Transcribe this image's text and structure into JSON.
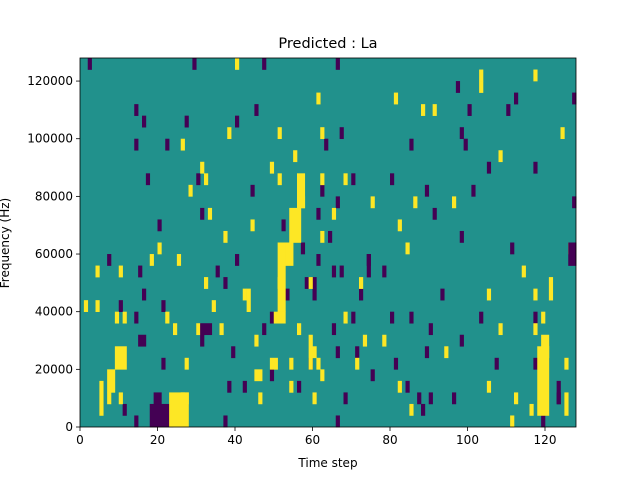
{
  "chart_data": {
    "type": "heatmap",
    "title": "Predicted : La",
    "xlabel": "Time step",
    "ylabel": "Frequency (Hz)",
    "xlim": [
      0,
      128
    ],
    "ylim": [
      0,
      128000
    ],
    "xticks": [
      0,
      20,
      40,
      60,
      80,
      100,
      120
    ],
    "yticks": [
      0,
      20000,
      40000,
      60000,
      80000,
      100000,
      120000
    ],
    "n_time_steps": 128,
    "n_freq_bins": 32,
    "bin_width_hz": 4000,
    "colormap": "viridis",
    "background_value": 0,
    "colors": {
      "low": "#440154",
      "mid": "#21918c",
      "high": "#fde725"
    },
    "cells_low": [
      [
        2,
        31
      ],
      [
        29,
        31
      ],
      [
        47,
        31
      ],
      [
        66,
        31
      ],
      [
        97,
        29
      ],
      [
        112,
        28
      ],
      [
        127,
        28
      ],
      [
        14,
        27
      ],
      [
        45,
        27
      ],
      [
        100,
        27
      ],
      [
        110,
        27
      ],
      [
        16,
        26
      ],
      [
        27,
        26
      ],
      [
        40,
        26
      ],
      [
        67,
        25
      ],
      [
        98,
        25
      ],
      [
        14,
        24
      ],
      [
        22,
        24
      ],
      [
        63,
        24
      ],
      [
        85,
        24
      ],
      [
        99,
        24
      ],
      [
        105,
        22
      ],
      [
        117,
        22
      ],
      [
        17,
        21
      ],
      [
        30,
        21
      ],
      [
        70,
        21
      ],
      [
        80,
        21
      ],
      [
        101,
        20
      ],
      [
        44,
        20
      ],
      [
        62,
        20
      ],
      [
        89,
        20
      ],
      [
        66,
        19
      ],
      [
        127,
        19
      ],
      [
        31,
        18
      ],
      [
        91,
        18
      ],
      [
        61,
        18
      ],
      [
        20,
        17
      ],
      [
        52,
        17
      ],
      [
        64,
        16
      ],
      [
        98,
        16
      ],
      [
        57,
        15
      ],
      [
        111,
        15
      ],
      [
        7,
        14
      ],
      [
        40,
        14
      ],
      [
        61,
        14
      ],
      [
        74,
        14
      ],
      [
        35,
        13
      ],
      [
        15,
        13
      ],
      [
        60,
        12
      ],
      [
        58,
        12
      ],
      [
        37,
        12
      ],
      [
        65,
        13
      ],
      [
        67,
        13
      ],
      [
        53,
        11
      ],
      [
        60,
        11
      ],
      [
        72,
        11
      ],
      [
        93,
        11
      ],
      [
        16,
        11
      ],
      [
        10,
        10
      ],
      [
        21,
        10
      ],
      [
        14,
        9
      ],
      [
        49,
        9
      ],
      [
        70,
        9
      ],
      [
        80,
        9
      ],
      [
        85,
        9
      ],
      [
        103,
        9
      ],
      [
        117,
        9
      ],
      [
        65,
        8
      ],
      [
        98,
        7
      ],
      [
        90,
        8
      ],
      [
        47,
        8
      ],
      [
        39,
        6
      ],
      [
        31,
        7
      ],
      [
        66,
        6
      ],
      [
        71,
        6
      ],
      [
        89,
        6
      ],
      [
        21,
        5
      ],
      [
        59,
        5
      ],
      [
        81,
        5
      ],
      [
        107,
        5
      ],
      [
        117,
        5
      ],
      [
        49,
        4
      ],
      [
        75,
        4
      ],
      [
        42,
        3
      ],
      [
        56,
        3
      ],
      [
        84,
        3
      ],
      [
        68,
        2
      ],
      [
        90,
        2
      ],
      [
        96,
        2
      ],
      [
        123,
        2
      ],
      [
        11,
        1
      ],
      [
        88,
        1
      ],
      [
        14,
        0
      ],
      [
        37,
        0
      ],
      [
        66,
        0
      ],
      [
        119,
        0
      ]
    ],
    "cells_high": [
      [
        40,
        31
      ],
      [
        103,
        30
      ],
      [
        117,
        30
      ],
      [
        103,
        29
      ],
      [
        81,
        28
      ],
      [
        61,
        28
      ],
      [
        88,
        27
      ],
      [
        91,
        27
      ],
      [
        38,
        25
      ],
      [
        51,
        25
      ],
      [
        62,
        25
      ],
      [
        124,
        25
      ],
      [
        26,
        24
      ],
      [
        55,
        23
      ],
      [
        108,
        23
      ],
      [
        31,
        22
      ],
      [
        49,
        22
      ],
      [
        32,
        21
      ],
      [
        51,
        21
      ],
      [
        62,
        21
      ],
      [
        68,
        21
      ],
      [
        28,
        20
      ],
      [
        57,
        19
      ],
      [
        75,
        19
      ],
      [
        86,
        19
      ],
      [
        96,
        19
      ],
      [
        33,
        18
      ],
      [
        65,
        18
      ],
      [
        44,
        17
      ],
      [
        82,
        17
      ],
      [
        37,
        16
      ],
      [
        62,
        16
      ],
      [
        20,
        15
      ],
      [
        84,
        15
      ],
      [
        126,
        15
      ],
      [
        18,
        14
      ],
      [
        25,
        14
      ],
      [
        10,
        13
      ],
      [
        114,
        13
      ],
      [
        4,
        13
      ],
      [
        32,
        12
      ],
      [
        51,
        12
      ],
      [
        59,
        12
      ],
      [
        72,
        12
      ],
      [
        42,
        11
      ],
      [
        105,
        11
      ],
      [
        117,
        11
      ],
      [
        1,
        10
      ],
      [
        4,
        10
      ],
      [
        9,
        9
      ],
      [
        11,
        9
      ],
      [
        22,
        9
      ],
      [
        68,
        9
      ],
      [
        119,
        9
      ],
      [
        24,
        8
      ],
      [
        30,
        8
      ],
      [
        36,
        8
      ],
      [
        56,
        8
      ],
      [
        108,
        8
      ],
      [
        117,
        8
      ],
      [
        45,
        7
      ],
      [
        120,
        6
      ],
      [
        27,
        5
      ],
      [
        54,
        5
      ],
      [
        125,
        5
      ],
      [
        54,
        3
      ],
      [
        82,
        3
      ],
      [
        105,
        3
      ],
      [
        26,
        2
      ],
      [
        46,
        2
      ],
      [
        7,
        2
      ],
      [
        10,
        2
      ],
      [
        60,
        6
      ],
      [
        78,
        7
      ],
      [
        94,
        6
      ],
      [
        61,
        5
      ],
      [
        62,
        4
      ],
      [
        60,
        2
      ],
      [
        71,
        5
      ],
      [
        73,
        7
      ],
      [
        85,
        1
      ],
      [
        112,
        2
      ],
      [
        116,
        1
      ],
      [
        111,
        0
      ]
    ],
    "cells_low_blocks": [
      [
        18,
        0,
        6,
        2
      ],
      [
        19,
        2,
        2,
        1
      ],
      [
        31,
        8,
        3,
        1
      ],
      [
        15,
        7,
        2,
        1
      ],
      [
        74,
        13,
        1,
        2
      ],
      [
        78,
        13,
        1,
        1
      ],
      [
        123,
        2,
        1,
        2
      ],
      [
        126,
        14,
        2,
        2
      ],
      [
        87,
        2,
        1,
        1
      ],
      [
        38,
        3,
        1,
        1
      ]
    ],
    "cells_high_blocks": [
      [
        23,
        0,
        5,
        3
      ],
      [
        26,
        2,
        2,
        1
      ],
      [
        34,
        10,
        1,
        1
      ],
      [
        43,
        10,
        1,
        2
      ],
      [
        121,
        11,
        1,
        2
      ],
      [
        118,
        1,
        3,
        6
      ],
      [
        119,
        7,
        2,
        1
      ],
      [
        125,
        1,
        1,
        2
      ],
      [
        5,
        1,
        1,
        3
      ],
      [
        7,
        3,
        2,
        2
      ],
      [
        9,
        5,
        3,
        2
      ],
      [
        50,
        9,
        3,
        1
      ],
      [
        51,
        10,
        2,
        6
      ],
      [
        53,
        14,
        2,
        2
      ],
      [
        54,
        16,
        3,
        3
      ],
      [
        56,
        19,
        2,
        1
      ],
      [
        56,
        20,
        2,
        2
      ],
      [
        59,
        5,
        1,
        3
      ],
      [
        45,
        4,
        2,
        1
      ],
      [
        49,
        5,
        2,
        1
      ]
    ]
  }
}
